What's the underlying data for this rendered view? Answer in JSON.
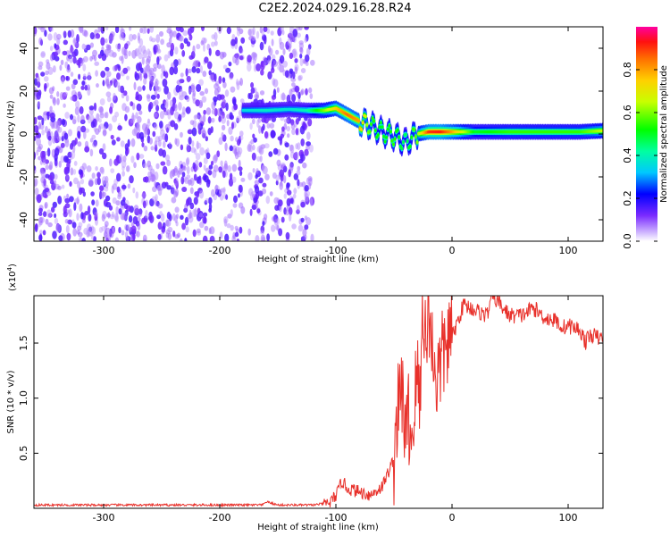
{
  "title": "C2E2.2024.029.16.28.R24",
  "chart_data": [
    {
      "type": "heatmap",
      "xlabel": "Height of straight line (km)",
      "ylabel": "Frequency (Hz)",
      "xlim": [
        -360,
        130
      ],
      "ylim": [
        -50,
        50
      ],
      "xticks": [
        -300,
        -200,
        -100,
        0,
        100
      ],
      "yticks": [
        -40,
        -20,
        0,
        20,
        40
      ],
      "colorbar": {
        "label": "Normalized spectral amplitude",
        "range": [
          0.0,
          1.0
        ],
        "ticks": [
          "0.0",
          "0.2",
          "0.4",
          "0.6",
          "0.8"
        ],
        "tick_values": [
          0.0,
          0.2,
          0.4,
          0.6,
          0.8
        ]
      },
      "noise_region_x": [
        -360,
        -120
      ],
      "no_data_gap_x": [
        -180,
        -175
      ],
      "ridge": [
        {
          "x": -180,
          "freq": 11,
          "amp": 0.35
        },
        {
          "x": -160,
          "freq": 11,
          "amp": 0.38
        },
        {
          "x": -140,
          "freq": 11.5,
          "amp": 0.36
        },
        {
          "x": -125,
          "freq": 11,
          "amp": 0.4
        },
        {
          "x": -110,
          "freq": 11,
          "amp": 0.6
        },
        {
          "x": -100,
          "freq": 12,
          "amp": 0.75
        },
        {
          "x": -90,
          "freq": 9,
          "amp": 0.85
        },
        {
          "x": -80,
          "freq": 6,
          "amp": 0.8
        },
        {
          "x": -70,
          "freq": 4,
          "amp": 0.55
        },
        {
          "x": -60,
          "freq": 1,
          "amp": 0.5
        },
        {
          "x": -50,
          "freq": -1,
          "amp": 0.55
        },
        {
          "x": -40,
          "freq": -4,
          "amp": 0.45
        },
        {
          "x": -30,
          "freq": 0,
          "amp": 0.6
        },
        {
          "x": -20,
          "freq": 1,
          "amp": 0.9
        },
        {
          "x": -10,
          "freq": 1,
          "amp": 0.92
        },
        {
          "x": 0,
          "freq": 1,
          "amp": 0.8
        },
        {
          "x": 20,
          "freq": 1,
          "amp": 0.5
        },
        {
          "x": 50,
          "freq": 1,
          "amp": 0.55
        },
        {
          "x": 80,
          "freq": 1,
          "amp": 0.55
        },
        {
          "x": 110,
          "freq": 1,
          "amp": 0.55
        },
        {
          "x": 130,
          "freq": 1.5,
          "amp": 0.65
        }
      ]
    },
    {
      "type": "line",
      "xlabel": "Height of straight line (km)",
      "ylabel": "SNR (10 * v/v)",
      "scale_label": "(x10",
      "scale_exp": "4",
      "scale_close": ")",
      "xlim": [
        -360,
        130
      ],
      "ylim": [
        0,
        19300
      ],
      "xticks": [
        -300,
        -200,
        -100,
        0,
        100
      ],
      "yticks": [
        5000,
        10000,
        15000
      ],
      "ytick_labels": [
        "0.5",
        "1.0",
        "1.5"
      ],
      "series": [
        {
          "color": "#e8302a",
          "x": [
            -360,
            -300,
            -200,
            -163,
            -160,
            -150,
            -120,
            -105,
            -98,
            -95,
            -90,
            -80,
            -70,
            -60,
            -50,
            -48,
            -45,
            -42,
            -40,
            -38,
            -35,
            -30,
            -28,
            -25,
            -22,
            -20,
            -18,
            -15,
            -13,
            -10,
            -5,
            0,
            5,
            10,
            20,
            30,
            35,
            40,
            45,
            50,
            60,
            70,
            80,
            90,
            95,
            100,
            110,
            115,
            120,
            125,
            130
          ],
          "y": [
            300,
            300,
            300,
            300,
            600,
            300,
            300,
            500,
            1500,
            2500,
            1800,
            1500,
            1200,
            2000,
            4500,
            8000,
            9600,
            11000,
            4500,
            9000,
            6000,
            12500,
            9000,
            19000,
            14000,
            19000,
            15000,
            13500,
            11500,
            13000,
            15000,
            15500,
            17000,
            18500,
            18000,
            17500,
            19300,
            18700,
            18000,
            17500,
            17500,
            18200,
            17300,
            17000,
            16400,
            16600,
            16200,
            15100,
            15800,
            15500,
            15400
          ]
        }
      ]
    }
  ]
}
